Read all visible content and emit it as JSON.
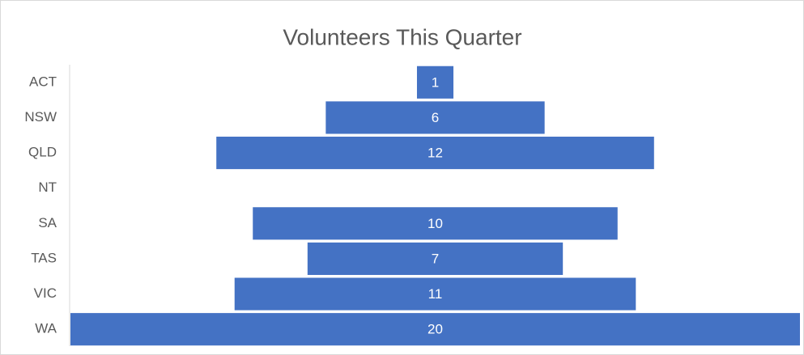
{
  "chart_data": {
    "type": "funnel",
    "title": "Volunteers This Quarter",
    "categories": [
      "ACT",
      "NSW",
      "QLD",
      "NT",
      "SA",
      "TAS",
      "VIC",
      "WA"
    ],
    "values": [
      1,
      6,
      12,
      null,
      10,
      7,
      11,
      20
    ],
    "color": "#4472c4"
  }
}
